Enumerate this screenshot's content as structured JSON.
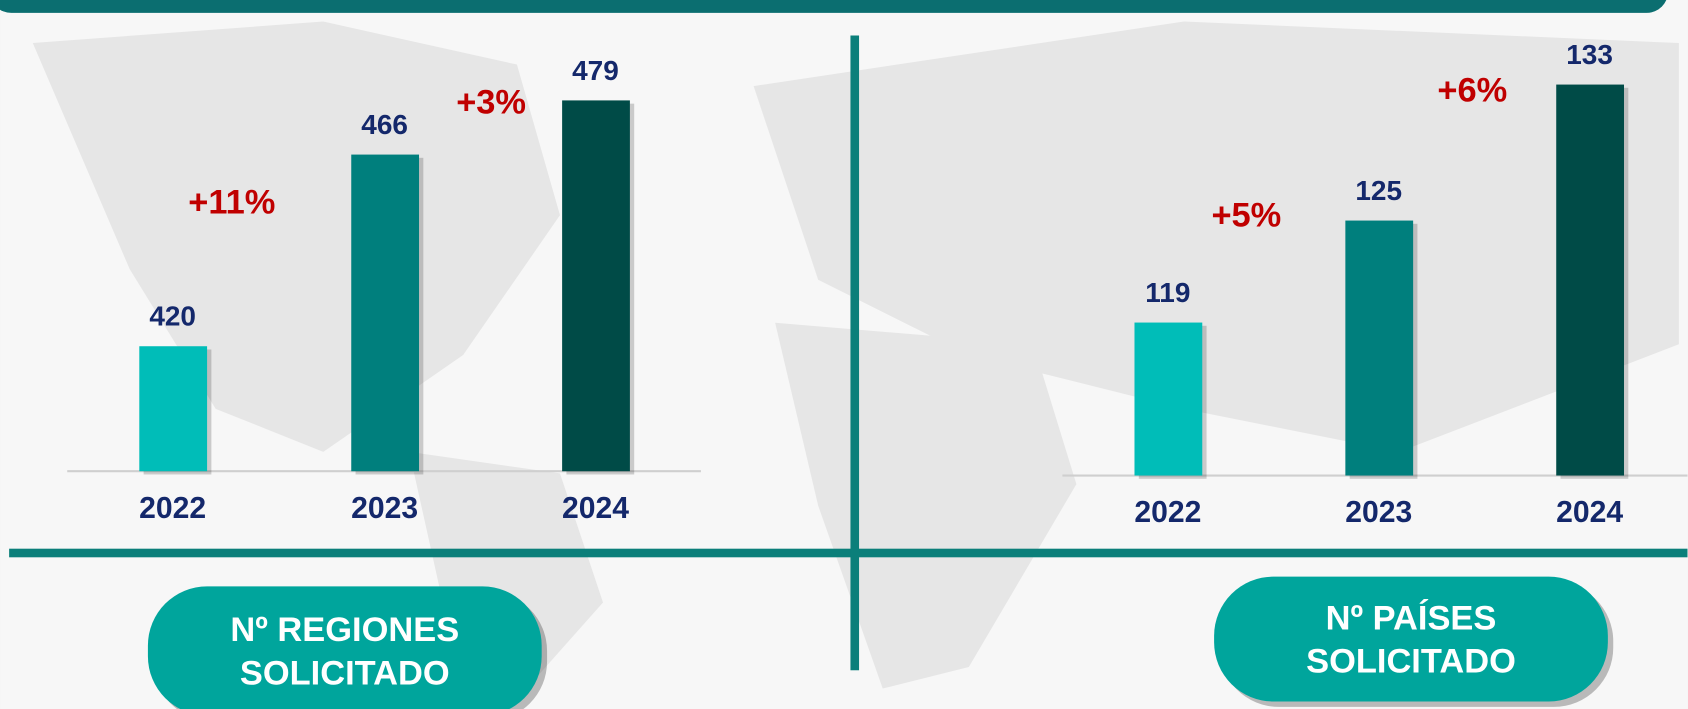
{
  "chart_data": [
    {
      "type": "bar",
      "label": "Nº REGIONES SOLICITADO",
      "categories": [
        "2022",
        "2023",
        "2024"
      ],
      "values": [
        420,
        466,
        479
      ],
      "colors": [
        "#00bdb8",
        "#007f7d",
        "#004b47"
      ],
      "ylim": [
        390,
        500
      ],
      "annotations": [
        "+11%",
        "+3%"
      ]
    },
    {
      "type": "bar",
      "label": "Nº PAÍSES SOLICITADO",
      "categories": [
        "2022",
        "2023",
        "2024"
      ],
      "values": [
        119,
        125,
        133
      ],
      "colors": [
        "#00bdb8",
        "#007f7d",
        "#004b47"
      ],
      "ylim": [
        110,
        135
      ],
      "annotations": [
        "+5%",
        "+6%"
      ]
    }
  ]
}
